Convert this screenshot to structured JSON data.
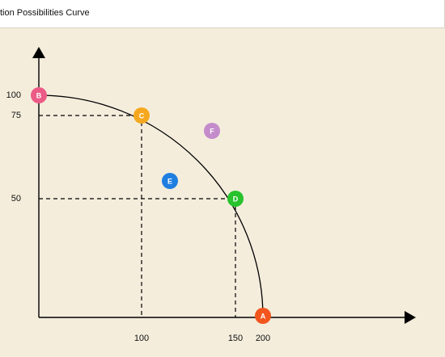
{
  "header": {
    "title": "tion Possibilities Curve"
  },
  "y_labels": [
    "100",
    "75",
    "50"
  ],
  "x_labels": [
    "100",
    "150",
    "200"
  ],
  "points": [
    {
      "label": "B",
      "color": "#ec5a86"
    },
    {
      "label": "C",
      "color": "#f5a81f"
    },
    {
      "label": "F",
      "color": "#c48ccb"
    },
    {
      "label": "E",
      "color": "#1f7fe0"
    },
    {
      "label": "D",
      "color": "#27c22c"
    },
    {
      "label": "A",
      "color": "#f2561d"
    }
  ]
}
